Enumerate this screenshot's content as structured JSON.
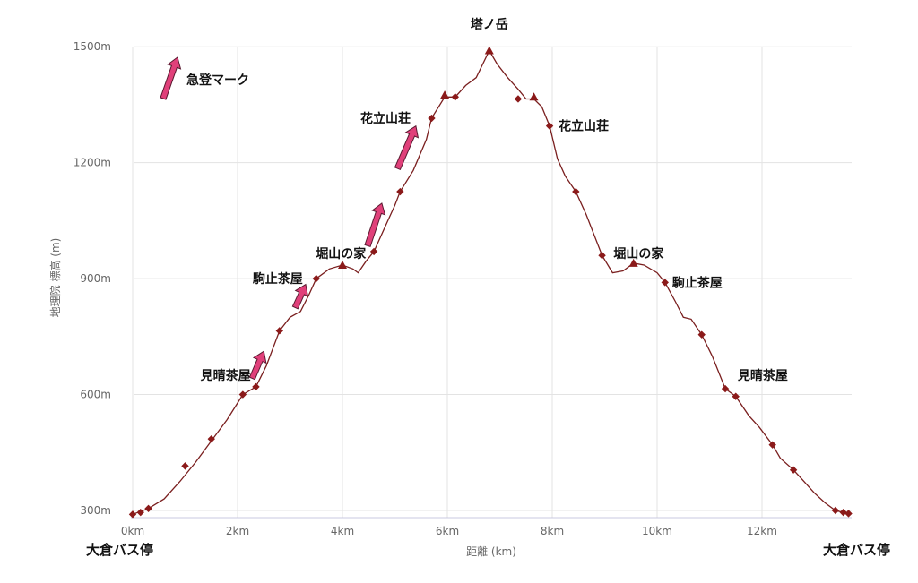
{
  "chart_data": {
    "type": "line",
    "xlabel": "距離 (km)",
    "ylabel": "地理院 標高 (m)",
    "xlim": [
      0,
      13.7
    ],
    "ylim": [
      280,
      1500
    ],
    "x_ticks": [
      {
        "value": 0,
        "label": "0km"
      },
      {
        "value": 2,
        "label": "2km"
      },
      {
        "value": 4,
        "label": "4km"
      },
      {
        "value": 6,
        "label": "6km"
      },
      {
        "value": 8,
        "label": "8km"
      },
      {
        "value": 10,
        "label": "10km"
      },
      {
        "value": 12,
        "label": "12km"
      }
    ],
    "y_ticks": [
      {
        "value": 300,
        "label": "300m"
      },
      {
        "value": 600,
        "label": "600m"
      },
      {
        "value": 900,
        "label": "900m"
      },
      {
        "value": 1200,
        "label": "1200m"
      },
      {
        "value": 1500,
        "label": "1500m"
      }
    ],
    "grid": true,
    "line_color": "#7a1f1f",
    "marker_color": "#8b1a1a",
    "profile": [
      [
        0.0,
        290
      ],
      [
        0.3,
        305
      ],
      [
        0.6,
        330
      ],
      [
        0.9,
        375
      ],
      [
        1.2,
        425
      ],
      [
        1.5,
        480
      ],
      [
        1.8,
        535
      ],
      [
        2.1,
        600
      ],
      [
        2.35,
        620
      ],
      [
        2.55,
        675
      ],
      [
        2.8,
        765
      ],
      [
        3.0,
        800
      ],
      [
        3.2,
        815
      ],
      [
        3.35,
        855
      ],
      [
        3.5,
        900
      ],
      [
        3.75,
        925
      ],
      [
        4.0,
        935
      ],
      [
        4.2,
        925
      ],
      [
        4.3,
        915
      ],
      [
        4.45,
        945
      ],
      [
        4.6,
        970
      ],
      [
        4.85,
        1045
      ],
      [
        5.0,
        1090
      ],
      [
        5.1,
        1125
      ],
      [
        5.35,
        1180
      ],
      [
        5.6,
        1260
      ],
      [
        5.7,
        1315
      ],
      [
        5.95,
        1370
      ],
      [
        6.15,
        1370
      ],
      [
        6.35,
        1400
      ],
      [
        6.55,
        1420
      ],
      [
        6.8,
        1490
      ],
      [
        6.95,
        1455
      ],
      [
        7.15,
        1420
      ],
      [
        7.35,
        1390
      ],
      [
        7.5,
        1365
      ],
      [
        7.65,
        1365
      ],
      [
        7.8,
        1345
      ],
      [
        7.95,
        1295
      ],
      [
        8.1,
        1210
      ],
      [
        8.25,
        1165
      ],
      [
        8.45,
        1125
      ],
      [
        8.65,
        1065
      ],
      [
        8.95,
        960
      ],
      [
        9.15,
        915
      ],
      [
        9.35,
        920
      ],
      [
        9.55,
        940
      ],
      [
        9.75,
        935
      ],
      [
        10.0,
        915
      ],
      [
        10.15,
        890
      ],
      [
        10.35,
        840
      ],
      [
        10.5,
        800
      ],
      [
        10.65,
        795
      ],
      [
        10.85,
        755
      ],
      [
        11.05,
        700
      ],
      [
        11.3,
        615
      ],
      [
        11.5,
        595
      ],
      [
        11.75,
        545
      ],
      [
        11.95,
        515
      ],
      [
        12.2,
        470
      ],
      [
        12.35,
        435
      ],
      [
        12.6,
        405
      ],
      [
        12.8,
        375
      ],
      [
        13.0,
        345
      ],
      [
        13.2,
        320
      ],
      [
        13.4,
        300
      ],
      [
        13.55,
        295
      ],
      [
        13.7,
        290
      ]
    ],
    "diamond_markers": [
      [
        0.0,
        290
      ],
      [
        0.15,
        295
      ],
      [
        0.3,
        305
      ],
      [
        1.0,
        415
      ],
      [
        1.5,
        485
      ],
      [
        2.1,
        600
      ],
      [
        2.35,
        620
      ],
      [
        2.8,
        765
      ],
      [
        3.5,
        900
      ],
      [
        4.6,
        970
      ],
      [
        5.1,
        1125
      ],
      [
        5.7,
        1315
      ],
      [
        6.15,
        1370
      ],
      [
        7.35,
        1365
      ],
      [
        7.95,
        1295
      ],
      [
        8.45,
        1125
      ],
      [
        8.95,
        960
      ],
      [
        10.15,
        890
      ],
      [
        10.85,
        755
      ],
      [
        11.3,
        615
      ],
      [
        11.5,
        595
      ],
      [
        12.2,
        470
      ],
      [
        12.6,
        405
      ],
      [
        13.4,
        300
      ],
      [
        13.55,
        295
      ],
      [
        13.65,
        292
      ]
    ],
    "triangle_markers": [
      [
        4.0,
        935
      ],
      [
        5.95,
        1375
      ],
      [
        6.8,
        1490
      ],
      [
        7.65,
        1370
      ],
      [
        9.55,
        940
      ]
    ],
    "ascent_arrows": [
      {
        "from": [
          2.28,
          642
        ],
        "to": [
          2.5,
          712
        ]
      },
      {
        "from": [
          3.1,
          825
        ],
        "to": [
          3.3,
          885
        ]
      },
      {
        "from": [
          4.48,
          985
        ],
        "to": [
          4.75,
          1095
        ]
      },
      {
        "from": [
          5.05,
          1185
        ],
        "to": [
          5.4,
          1295
        ]
      }
    ],
    "annotations": [
      {
        "text": "塔ノ岳",
        "x": 6.8,
        "y": 1500,
        "anchor": "middle",
        "dx": 0,
        "dy": -20
      },
      {
        "text": "花立山荘",
        "x": 5.3,
        "y": 1315,
        "anchor": "end",
        "dx": 0,
        "dy": 5
      },
      {
        "text": "花立山荘",
        "x": 7.95,
        "y": 1295,
        "anchor": "start",
        "dx": 10,
        "dy": 5
      },
      {
        "text": "堀山の家",
        "x": 4.45,
        "y": 965,
        "anchor": "end",
        "dx": 0,
        "dy": 5
      },
      {
        "text": "堀山の家",
        "x": 9.1,
        "y": 965,
        "anchor": "start",
        "dx": 4,
        "dy": 5
      },
      {
        "text": "駒止茶屋",
        "x": 3.45,
        "y": 900,
        "anchor": "end",
        "dx": -12,
        "dy": 5
      },
      {
        "text": "駒止茶屋",
        "x": 10.15,
        "y": 890,
        "anchor": "start",
        "dx": 8,
        "dy": 5
      },
      {
        "text": "見晴茶屋",
        "x": 2.25,
        "y": 650,
        "anchor": "end",
        "dx": 0,
        "dy": 5
      },
      {
        "text": "見晴茶屋",
        "x": 11.4,
        "y": 650,
        "anchor": "start",
        "dx": 8,
        "dy": 5
      }
    ],
    "legend": {
      "label": "急登マーク",
      "placement": "top-left"
    }
  },
  "start_label": "大倉バス停",
  "end_label": "大倉バス停",
  "colors": {
    "line": "#7a1f1f",
    "marker": "#8b1a1a",
    "arrow_fill": "#e0407a",
    "arrow_stroke": "#5a1a30",
    "grid": "#e3e3e3",
    "axis": "#c8c8e0"
  }
}
